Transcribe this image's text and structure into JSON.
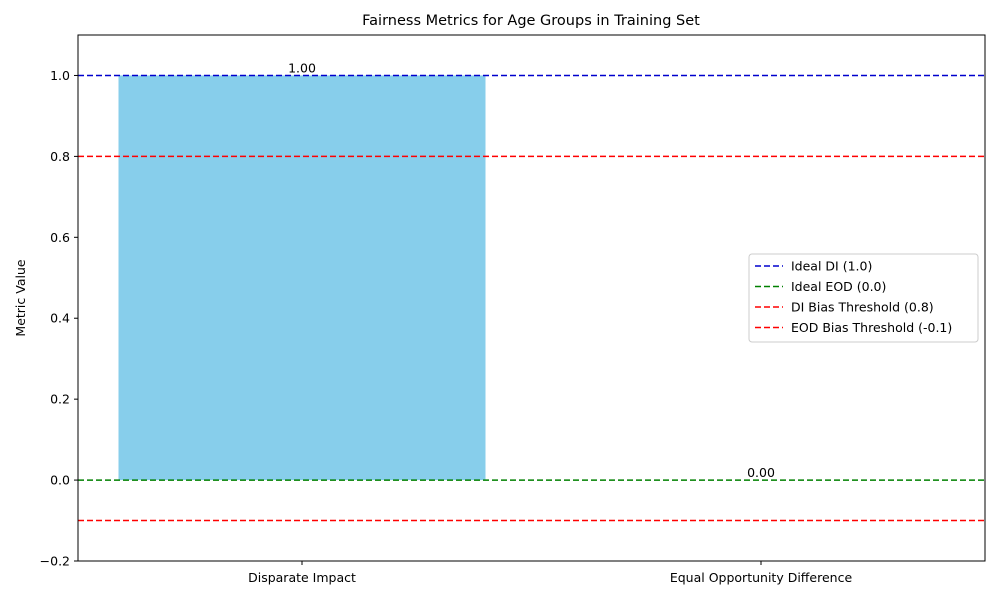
{
  "chart_data": {
    "type": "bar",
    "title": "Fairness Metrics for Age Groups in Training Set",
    "xlabel": "",
    "ylabel": "Metric Value",
    "categories": [
      "Disparate Impact",
      "Equal Opportunity Difference"
    ],
    "values": [
      1.0,
      0.0
    ],
    "value_labels": [
      "1.00",
      "0.00"
    ],
    "bar_color": "#87ceeb",
    "ylim": [
      -0.2,
      1.1
    ],
    "yticks": [
      -0.2,
      0.0,
      0.2,
      0.4,
      0.6,
      0.8,
      1.0
    ],
    "ytick_labels": [
      "−0.2",
      "0.0",
      "0.2",
      "0.4",
      "0.6",
      "0.8",
      "1.0"
    ],
    "grid": false,
    "legend_position": "center-right",
    "reference_lines": [
      {
        "label": "Ideal DI (1.0)",
        "value": 1.0,
        "color": "#0000cd",
        "style": "dashed"
      },
      {
        "label": "Ideal EOD (0.0)",
        "value": 0.0,
        "color": "#008000",
        "style": "dashed"
      },
      {
        "label": "DI Bias Threshold (0.8)",
        "value": 0.8,
        "color": "#ff0000",
        "style": "dashed"
      },
      {
        "label": "EOD Bias Threshold (-0.1)",
        "value": -0.1,
        "color": "#ff0000",
        "style": "dashed"
      }
    ]
  }
}
